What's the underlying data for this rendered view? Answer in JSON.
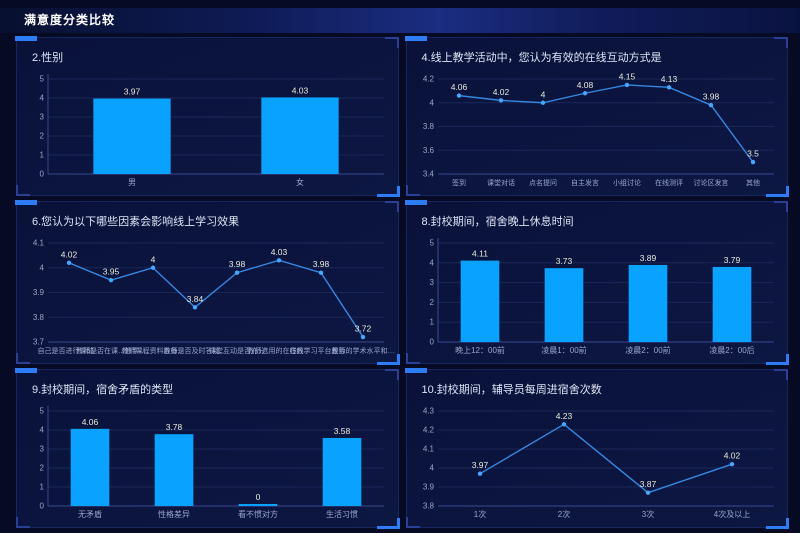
{
  "header": {
    "title": "满意度分类比较"
  },
  "colors": {
    "bar": "#09a2ff",
    "line": "#3787e0",
    "point": "#45a6ff",
    "grid": "#1b2757",
    "axis": "#3a4a8f",
    "accent": "#2e7cf6"
  },
  "chart_data": [
    {
      "type": "bar",
      "title": "2.性别",
      "categories": [
        "男",
        "女"
      ],
      "values": [
        3.97,
        4.03
      ],
      "ylim": [
        0,
        5
      ],
      "yticks": [
        0,
        1,
        2,
        3,
        4,
        5
      ]
    },
    {
      "type": "line",
      "title": "4.线上教学活动中，您认为有效的在线互动方式是",
      "categories": [
        "签到",
        "课堂对话",
        "点名提问",
        "自主发言",
        "小组讨论",
        "在线测评",
        "讨论区发言",
        "其他"
      ],
      "values": [
        4.06,
        4.02,
        4,
        4.08,
        4.15,
        4.13,
        3.98,
        3.5
      ],
      "ylim": [
        3.4,
        4.2
      ],
      "yticks": [
        3.4,
        3.6,
        3.8,
        4,
        4.2
      ]
    },
    {
      "type": "line",
      "title": "6.您认为以下哪些因素会影响线上学习效果",
      "categories": [
        "自己是否进行课前…",
        "教师是否在课…教学…",
        "教师课程资料准备…",
        "教师是否及时答疑…",
        "课堂互动是否充分",
        "教师选用的在线教…",
        "在线学习平台是否…",
        "教师的学术水平和…"
      ],
      "values": [
        4.02,
        3.95,
        4,
        3.84,
        3.98,
        4.03,
        3.98,
        3.72
      ],
      "ylim": [
        3.7,
        4.1
      ],
      "yticks": [
        3.7,
        3.8,
        3.9,
        4,
        4.1
      ]
    },
    {
      "type": "bar",
      "title": "8.封校期间，宿舍晚上休息时间",
      "categories": [
        "晚上12：00前",
        "凌晨1：00前",
        "凌晨2：00前",
        "凌晨2：00后"
      ],
      "values": [
        4.11,
        3.73,
        3.89,
        3.79
      ],
      "ylim": [
        0,
        5
      ],
      "yticks": [
        0,
        1,
        2,
        3,
        4,
        5
      ]
    },
    {
      "type": "bar",
      "title": "9.封校期间，宿舍矛盾的类型",
      "categories": [
        "无矛盾",
        "性格差异",
        "看不惯对方",
        "生活习惯"
      ],
      "values": [
        4.06,
        3.78,
        0,
        3.58
      ],
      "ylim": [
        0,
        5
      ],
      "yticks": [
        0,
        1,
        2,
        3,
        4,
        5
      ]
    },
    {
      "type": "line",
      "title": "10.封校期间，辅导员每周进宿舍次数",
      "categories": [
        "1次",
        "2次",
        "3次",
        "4次及以上"
      ],
      "values": [
        3.97,
        4.23,
        3.87,
        4.02
      ],
      "ylim": [
        3.8,
        4.3
      ],
      "yticks": [
        3.8,
        3.9,
        4,
        4.1,
        4.2,
        4.3
      ]
    }
  ]
}
